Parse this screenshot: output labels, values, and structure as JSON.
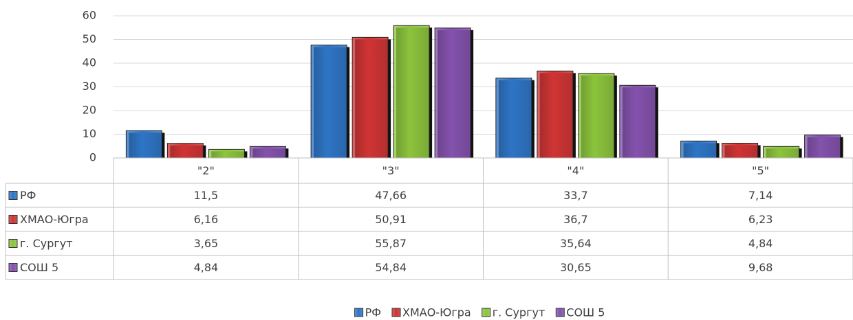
{
  "chart_data": {
    "type": "bar",
    "categories": [
      "\"2\"",
      "\"3\"",
      "\"4\"",
      "\"5\""
    ],
    "series": [
      {
        "name": "РФ",
        "color": "#2e75c6",
        "values": [
          11.5,
          47.66,
          33.7,
          7.14
        ],
        "value_labels": [
          "11,5",
          "47,66",
          "33,7",
          "7,14"
        ]
      },
      {
        "name": "ХМАО-Югра",
        "color": "#d03434",
        "values": [
          6.16,
          50.91,
          36.7,
          6.23
        ],
        "value_labels": [
          "6,16",
          "50,91",
          "36,7",
          "6,23"
        ]
      },
      {
        "name": "г. Сургут",
        "color": "#8cc43c",
        "values": [
          3.65,
          55.87,
          35.64,
          4.84
        ],
        "value_labels": [
          "3,65",
          "55,87",
          "35,64",
          "4,84"
        ]
      },
      {
        "name": "СОШ 5",
        "color": "#8452ad",
        "values": [
          4.84,
          54.84,
          30.65,
          9.68
        ],
        "value_labels": [
          "4,84",
          "54,84",
          "30,65",
          "9,68"
        ]
      }
    ],
    "ylim": [
      0,
      60
    ],
    "yticks": [
      0,
      10,
      20,
      30,
      40,
      50,
      60
    ],
    "grid": true,
    "legend": "bottom"
  }
}
